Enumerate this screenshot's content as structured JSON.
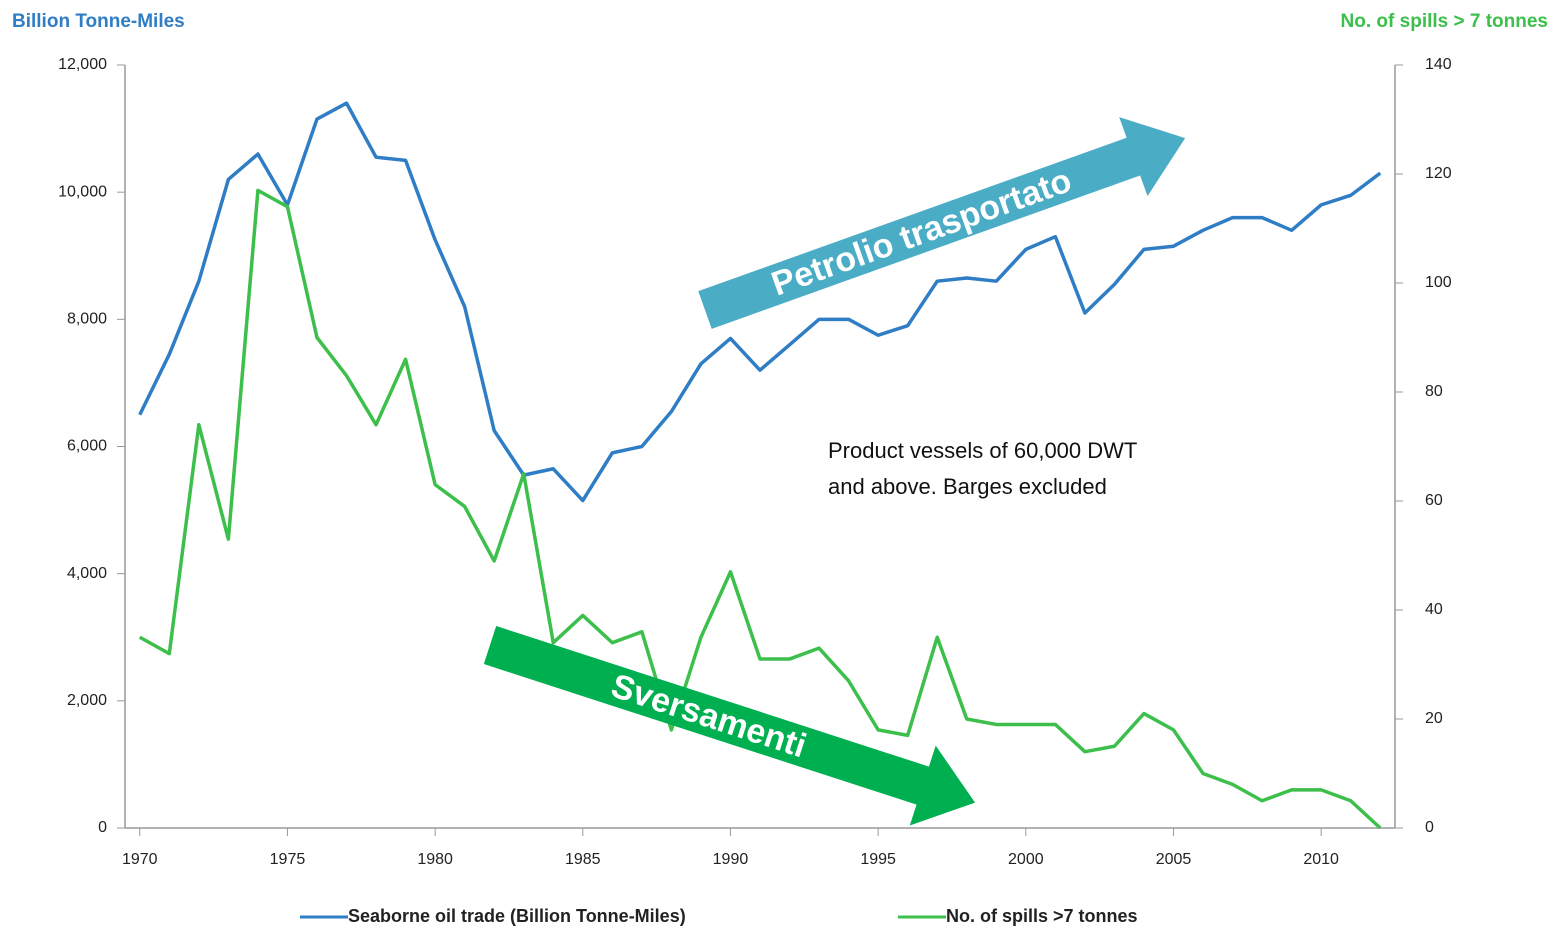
{
  "chart_data": {
    "type": "line",
    "y_axis_label": "Billion Tonne-Miles",
    "y2_axis_label": "No. of spills > 7 tonnes",
    "x": [
      1970,
      1971,
      1972,
      1973,
      1974,
      1975,
      1976,
      1977,
      1978,
      1979,
      1980,
      1981,
      1982,
      1983,
      1984,
      1985,
      1986,
      1987,
      1988,
      1989,
      1990,
      1991,
      1992,
      1993,
      1994,
      1995,
      1996,
      1997,
      1998,
      1999,
      2000,
      2001,
      2002,
      2003,
      2004,
      2005,
      2006,
      2007,
      2008,
      2009,
      2010,
      2011,
      2012
    ],
    "series": [
      {
        "name": "Seaborne oil trade (Billion Tonne-Miles)",
        "color": "#2f7dc5",
        "axis": "y",
        "values": [
          6500,
          7450,
          8600,
          10200,
          10600,
          9800,
          11150,
          11400,
          10550,
          10500,
          9250,
          8200,
          6250,
          5550,
          5650,
          5150,
          5900,
          6000,
          6550,
          7300,
          7700,
          7200,
          7600,
          8000,
          8000,
          7750,
          7900,
          8600,
          8650,
          8600,
          9100,
          9300,
          8100,
          8550,
          9100,
          9150,
          9400,
          9600,
          9600,
          9400,
          9800,
          9950,
          10300
        ]
      },
      {
        "name": "No. of spills >7 tonnes",
        "color": "#3cbf4b",
        "axis": "y2",
        "values": [
          35,
          32,
          74,
          53,
          117,
          114,
          90,
          83,
          74,
          86,
          63,
          59,
          49,
          65,
          34,
          39,
          34,
          36,
          18,
          35,
          47,
          31,
          31,
          33,
          27,
          18,
          17,
          35,
          20,
          19,
          19,
          19,
          14,
          15,
          21,
          18,
          10,
          8,
          5,
          7,
          7,
          5,
          0
        ]
      }
    ],
    "xlim": [
      1969.5,
      2012.5
    ],
    "xticks": [
      1970,
      1975,
      1980,
      1985,
      1990,
      1995,
      2000,
      2005,
      2010
    ],
    "ylim": [
      0,
      12000
    ],
    "yticks": [
      0,
      {
        "value": 2000,
        "label": "2,000"
      },
      {
        "value": 4000,
        "label": "4,000"
      },
      {
        "value": 6000,
        "label": "6,000"
      },
      {
        "value": 8000,
        "label": "8,000"
      },
      {
        "value": 10000,
        "label": "10,000"
      },
      {
        "value": 12000,
        "label": "12,000"
      }
    ],
    "y2lim": [
      0,
      140
    ],
    "y2ticks": [
      0,
      20,
      40,
      60,
      80,
      100,
      120,
      140
    ],
    "annotations": {
      "note": [
        "Product vessels of 60,000 DWT",
        "and above. Barges excluded"
      ],
      "up_arrow": "Petrolio trasportato",
      "down_arrow": "Sversamenti"
    },
    "legend": "bottom"
  }
}
